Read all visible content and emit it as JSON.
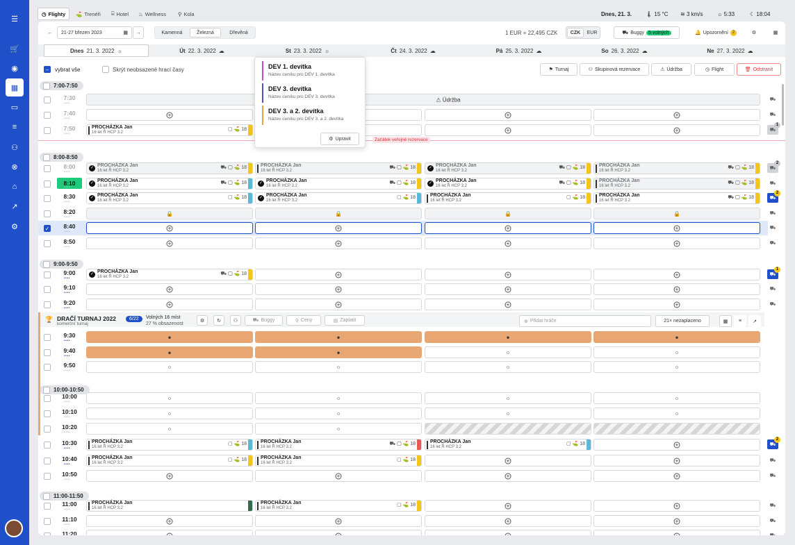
{
  "tabs": [
    {
      "label": "Flighty",
      "icon": "clock"
    },
    {
      "label": "Trenéři",
      "icon": "golfer"
    },
    {
      "label": "Hotel",
      "icon": "bed"
    },
    {
      "label": "Wellness",
      "icon": "wellness"
    },
    {
      "label": "Kola",
      "icon": "bike"
    }
  ],
  "status": {
    "date": "Dnes, 21. 3.",
    "temp": "15 °C",
    "wind": "3 km/s",
    "sunrise": "5:33",
    "sunset": "18:04"
  },
  "toolbar": {
    "date_range": "21-27 březen 2023",
    "courses": [
      "Kamenná",
      "Železná",
      "Dřevěná"
    ],
    "active_course": "Železná",
    "rate": "1 EUR = 22,495 CZK",
    "currencies": [
      "CZK",
      "EUR"
    ],
    "active_currency": "CZK",
    "buggy_label": "Buggy",
    "buggy_free": "5 volných",
    "alerts_label": "Upozornění",
    "alerts_count": "2"
  },
  "days": [
    {
      "label": "Dnes",
      "date": "21. 3. 2022"
    },
    {
      "label": "Út",
      "date": "22. 3. 2022"
    },
    {
      "label": "St",
      "date": "23. 3. 2022"
    },
    {
      "label": "Čt",
      "date": "24. 3. 2022"
    },
    {
      "label": "Pá",
      "date": "25. 3. 2022"
    },
    {
      "label": "So",
      "date": "26. 3. 2022"
    },
    {
      "label": "Ne",
      "date": "27. 3. 2022"
    }
  ],
  "options": {
    "select_all": "vybrat vše",
    "hide_empty": "Skrýt neobsazené hrací časy"
  },
  "actions": {
    "tournament": "Turnaj",
    "group": "Skupinová rezervace",
    "maintenance": "Údržba",
    "flight": "Flight",
    "delete": "Odstranit"
  },
  "dropdown": {
    "items": [
      {
        "title": "DEV 1. devítka",
        "sub": "Název ceníku pro DEV 1. devítka",
        "color": "#c44ec4"
      },
      {
        "title": "DEV 3. devítka",
        "sub": "Název ceníku pro DEV 3. devítka",
        "color": "#4b55c4"
      },
      {
        "title": "DEV 3. a 2. devítka",
        "sub": "Název ceníku pro DEV 3. a 2. devítka",
        "color": "#e8a24a"
      }
    ],
    "edit": "Upravit"
  },
  "maintenance_label": "Údržba",
  "public_start": "Začátek veřejné rezervace",
  "groups": [
    "7:00-7:50",
    "8:00-8:50",
    "9:00-9:50",
    "10:00-10:50",
    "11:00-11:50"
  ],
  "tournament": {
    "title": "DRAČÍ TURNAJ 2022",
    "subtitle": "komerční turnaj",
    "count": "6/22",
    "free": "Volných 16 míst",
    "occupancy": "27 % obsazenost",
    "buggy": "Buggy",
    "prices": "Ceny",
    "pay": "Zaplatit",
    "add_player": "Přidat hráče",
    "unpaid": "21× nezaplaceno"
  },
  "player": {
    "name": "PROCHÁZKA Jan",
    "info": "16 let  Ř  HCP 3.2",
    "hcp": "18"
  },
  "times": [
    "7:30",
    "7:40",
    "7:50",
    "8:00",
    "8:10",
    "8:30",
    "8:20",
    "8:40",
    "8:50",
    "9:00",
    "9:10",
    "9:20",
    "9:30",
    "9:40",
    "9:50",
    "10:00",
    "10:10",
    "10:20",
    "10:30",
    "10:40",
    "10:50",
    "11:00",
    "11:10",
    "11:20"
  ],
  "badges": {
    "r750": "1",
    "r800": "2",
    "r830": "2",
    "r900": "1",
    "r1030": "2"
  },
  "colors": {
    "accent": "#1f4fc9",
    "yellow": "#f5c518",
    "green": "#1ec97a",
    "orange": "#e8a673",
    "blue": "#5bb8d6",
    "red": "#e85a5a",
    "dark": "#2e6b4f"
  }
}
